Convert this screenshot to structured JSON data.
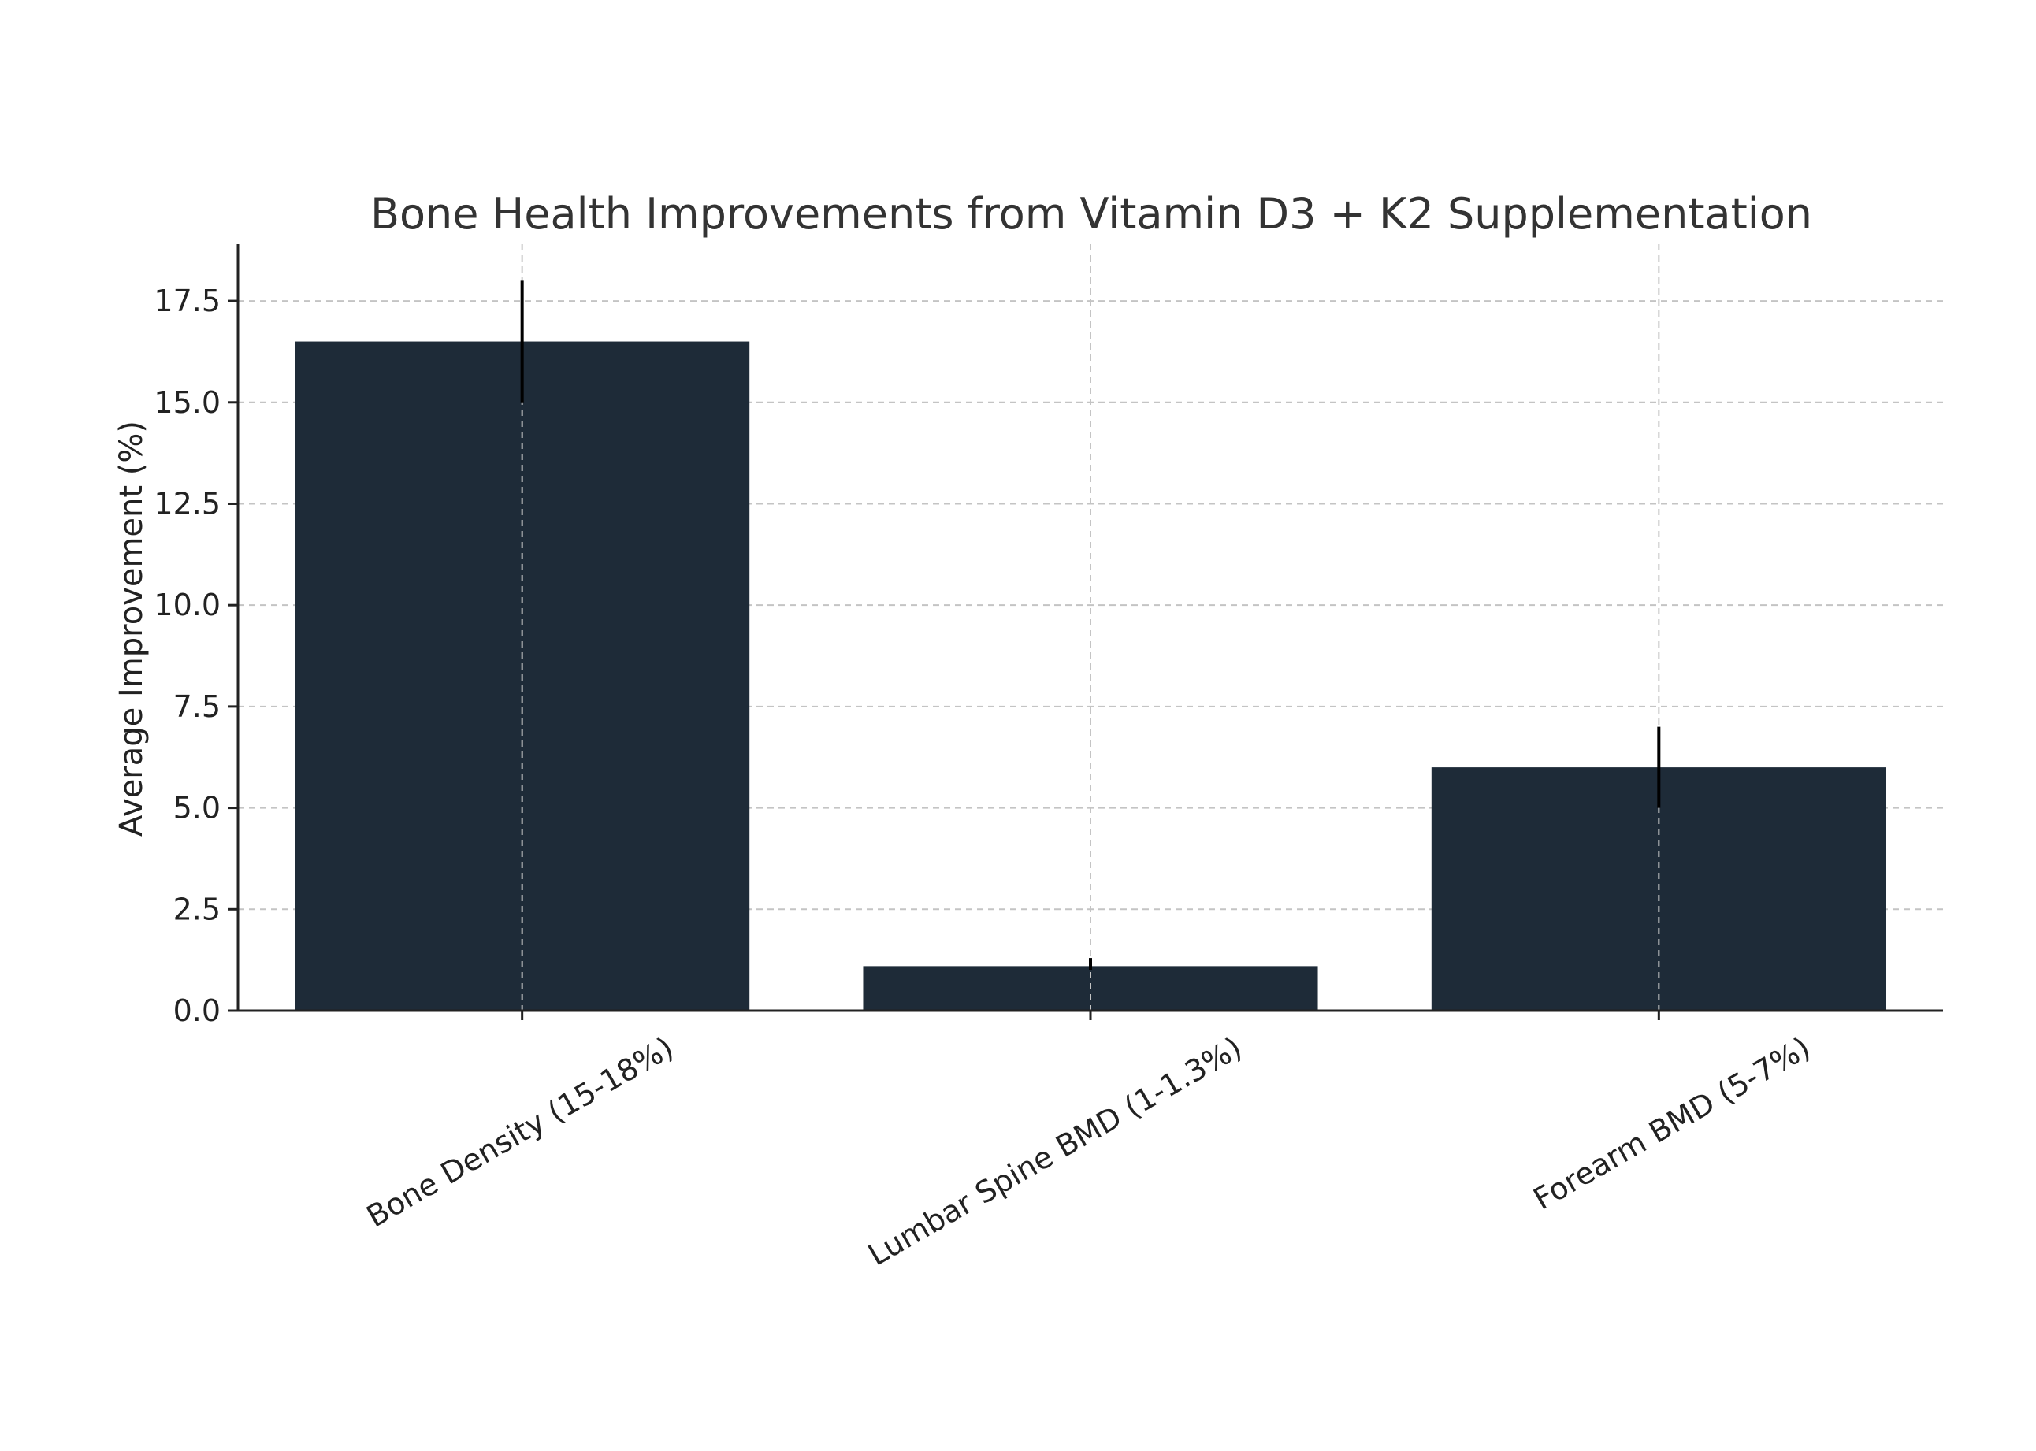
{
  "chart_data": {
    "type": "bar",
    "title": "Bone Health Improvements from Vitamin D3 + K2 Supplementation",
    "xlabel": "",
    "ylabel": "Average Improvement (%)",
    "categories": [
      "Bone Density (15-18%)",
      "Lumbar Spine BMD (1-1.3%)",
      "Forearm BMD (5-7%)"
    ],
    "values": [
      16.5,
      1.1,
      6.0
    ],
    "error_low": [
      15.0,
      1.0,
      5.0
    ],
    "error_high": [
      18.0,
      1.3,
      7.0
    ],
    "ylim": [
      0,
      18.9
    ],
    "yticks": [
      "0.0",
      "2.5",
      "5.0",
      "7.5",
      "10.0",
      "12.5",
      "15.0",
      "17.5"
    ],
    "ytick_values": [
      0,
      2.5,
      5,
      7.5,
      10,
      12.5,
      15,
      17.5
    ],
    "grid": true,
    "bar_color": "#1e2b38",
    "error_color": "#000000",
    "grid_color": "#c4c4c4"
  }
}
